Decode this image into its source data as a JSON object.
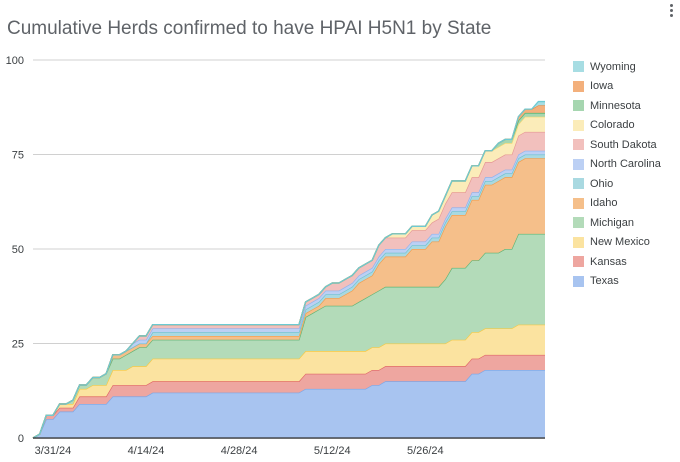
{
  "chart_data": {
    "type": "area",
    "stacked": true,
    "title": "Cumulative Herds confirmed to have HPAI H5N1 by State",
    "xlabel": "",
    "ylabel": "",
    "ylim": [
      0,
      100
    ],
    "y_ticks": [
      0,
      25,
      50,
      75,
      100
    ],
    "x_tick_labels": [
      "3/31/24",
      "4/14/24",
      "4/28/24",
      "5/12/24",
      "5/26/24"
    ],
    "x_tick_index": [
      3,
      17,
      31,
      45,
      59
    ],
    "grid": true,
    "legend_position": "right",
    "x": [
      "3/28/24",
      "3/29/24",
      "3/30/24",
      "3/31/24",
      "4/1/24",
      "4/2/24",
      "4/3/24",
      "4/4/24",
      "4/5/24",
      "4/6/24",
      "4/7/24",
      "4/8/24",
      "4/9/24",
      "4/10/24",
      "4/11/24",
      "4/12/24",
      "4/13/24",
      "4/14/24",
      "4/15/24",
      "4/16/24",
      "4/17/24",
      "4/18/24",
      "4/19/24",
      "4/20/24",
      "4/21/24",
      "4/22/24",
      "4/23/24",
      "4/24/24",
      "4/25/24",
      "4/26/24",
      "4/27/24",
      "4/28/24",
      "4/29/24",
      "4/30/24",
      "5/1/24",
      "5/2/24",
      "5/3/24",
      "5/4/24",
      "5/5/24",
      "5/6/24",
      "5/7/24",
      "5/8/24",
      "5/9/24",
      "5/10/24",
      "5/11/24",
      "5/12/24",
      "5/13/24",
      "5/14/24",
      "5/15/24",
      "5/16/24",
      "5/17/24",
      "5/18/24",
      "5/19/24",
      "5/20/24",
      "5/21/24",
      "5/22/24",
      "5/23/24",
      "5/24/24",
      "5/25/24",
      "5/26/24",
      "5/27/24",
      "5/28/24",
      "5/29/24",
      "5/30/24",
      "5/31/24",
      "6/1/24",
      "6/2/24",
      "6/3/24",
      "6/4/24",
      "6/5/24",
      "6/6/24",
      "6/7/24",
      "6/8/24",
      "6/9/24",
      "6/10/24",
      "6/11/24",
      "6/12/24",
      "6/13/24"
    ],
    "series": [
      {
        "name": "Texas",
        "color": "#a8c4f0",
        "line": "#7aa7e8",
        "values": [
          0,
          1,
          5,
          5,
          7,
          7,
          7,
          9,
          9,
          9,
          9,
          9,
          11,
          11,
          11,
          11,
          11,
          11,
          12,
          12,
          12,
          12,
          12,
          12,
          12,
          12,
          12,
          12,
          12,
          12,
          12,
          12,
          12,
          12,
          12,
          12,
          12,
          12,
          12,
          12,
          12,
          13,
          13,
          13,
          13,
          13,
          13,
          13,
          13,
          13,
          13,
          14,
          14,
          15,
          15,
          15,
          15,
          15,
          15,
          15,
          15,
          15,
          15,
          15,
          15,
          15,
          17,
          17,
          18,
          18,
          18,
          18,
          18,
          18,
          18,
          18,
          18,
          18
        ]
      },
      {
        "name": "Kansas",
        "color": "#eea6a0",
        "line": "#e06666",
        "values": [
          0,
          0,
          1,
          1,
          1,
          1,
          1,
          2,
          2,
          2,
          2,
          2,
          3,
          3,
          3,
          3,
          3,
          3,
          3,
          3,
          3,
          3,
          3,
          3,
          3,
          3,
          3,
          3,
          3,
          3,
          3,
          3,
          3,
          3,
          3,
          3,
          3,
          3,
          3,
          3,
          3,
          4,
          4,
          4,
          4,
          4,
          4,
          4,
          4,
          4,
          4,
          4,
          4,
          4,
          4,
          4,
          4,
          4,
          4,
          4,
          4,
          4,
          4,
          4,
          4,
          4,
          4,
          4,
          4,
          4,
          4,
          4,
          4,
          4,
          4,
          4,
          4,
          4
        ]
      },
      {
        "name": "New Mexico",
        "color": "#fbe3a0",
        "line": "#f6c944",
        "values": [
          0,
          0,
          0,
          0,
          1,
          1,
          1,
          2,
          2,
          3,
          3,
          3,
          4,
          4,
          4,
          5,
          5,
          5,
          6,
          6,
          6,
          6,
          6,
          6,
          6,
          6,
          6,
          6,
          6,
          6,
          6,
          6,
          6,
          6,
          6,
          6,
          6,
          6,
          6,
          6,
          6,
          6,
          6,
          6,
          6,
          6,
          6,
          6,
          6,
          6,
          6,
          6,
          6,
          6,
          6,
          6,
          6,
          6,
          6,
          6,
          6,
          6,
          6,
          7,
          7,
          7,
          7,
          7,
          7,
          7,
          7,
          7,
          7,
          8,
          8,
          8,
          8,
          8
        ]
      },
      {
        "name": "Michigan",
        "color": "#b3dbb9",
        "line": "#5fb474",
        "values": [
          0,
          0,
          0,
          0,
          0,
          0,
          1,
          1,
          1,
          2,
          2,
          3,
          3,
          3,
          4,
          4,
          5,
          5,
          5,
          5,
          5,
          5,
          5,
          5,
          5,
          5,
          5,
          5,
          5,
          5,
          5,
          5,
          5,
          5,
          5,
          5,
          5,
          5,
          5,
          5,
          5,
          9,
          10,
          11,
          12,
          12,
          12,
          12,
          12,
          13,
          14,
          14,
          15,
          15,
          15,
          15,
          15,
          15,
          15,
          15,
          15,
          15,
          17,
          19,
          19,
          19,
          19,
          19,
          20,
          20,
          20,
          21,
          21,
          24,
          24,
          24,
          24,
          24
        ]
      },
      {
        "name": "Idaho",
        "color": "#f5bf8a",
        "line": "#f29c4a",
        "values": [
          0,
          0,
          0,
          0,
          0,
          0,
          0,
          0,
          0,
          0,
          0,
          0,
          1,
          1,
          1,
          1,
          1,
          1,
          1,
          1,
          1,
          1,
          1,
          1,
          1,
          1,
          1,
          1,
          1,
          1,
          1,
          1,
          1,
          1,
          1,
          1,
          1,
          1,
          1,
          1,
          1,
          1,
          1,
          1,
          2,
          2,
          2,
          3,
          4,
          5,
          5,
          5,
          7,
          8,
          8,
          8,
          8,
          10,
          10,
          10,
          12,
          12,
          14,
          14,
          14,
          14,
          16,
          16,
          18,
          18,
          19,
          19,
          19,
          19,
          20,
          20,
          20,
          20
        ]
      },
      {
        "name": "Ohio",
        "color": "#a9d9e1",
        "line": "#6dc2cf",
        "values": [
          0,
          0,
          0,
          0,
          0,
          0,
          0,
          0,
          0,
          0,
          0,
          0,
          0,
          0,
          0,
          0,
          0,
          0,
          1,
          1,
          1,
          1,
          1,
          1,
          1,
          1,
          1,
          1,
          1,
          1,
          1,
          1,
          1,
          1,
          1,
          1,
          1,
          1,
          1,
          1,
          1,
          1,
          1,
          1,
          1,
          1,
          1,
          1,
          1,
          1,
          1,
          1,
          1,
          1,
          1,
          1,
          1,
          1,
          1,
          1,
          1,
          1,
          1,
          1,
          1,
          1,
          1,
          1,
          1,
          1,
          1,
          1,
          1,
          1,
          1,
          1,
          1,
          1
        ]
      },
      {
        "name": "North Carolina",
        "color": "#bcd0f4",
        "line": "#8fb2ee",
        "values": [
          0,
          0,
          0,
          0,
          0,
          0,
          0,
          0,
          0,
          0,
          0,
          0,
          0,
          0,
          0,
          1,
          1,
          1,
          1,
          1,
          1,
          1,
          1,
          1,
          1,
          1,
          1,
          1,
          1,
          1,
          1,
          1,
          1,
          1,
          1,
          1,
          1,
          1,
          1,
          1,
          1,
          1,
          1,
          1,
          1,
          1,
          1,
          1,
          1,
          1,
          1,
          1,
          1,
          1,
          1,
          1,
          1,
          1,
          1,
          1,
          1,
          1,
          1,
          1,
          1,
          1,
          1,
          1,
          1,
          1,
          1,
          1,
          1,
          1,
          1,
          1,
          1,
          1
        ]
      },
      {
        "name": "South Dakota",
        "color": "#f2c0bd",
        "line": "#e69894",
        "values": [
          0,
          0,
          0,
          0,
          0,
          0,
          0,
          0,
          0,
          0,
          0,
          0,
          0,
          0,
          0,
          0,
          1,
          1,
          1,
          1,
          1,
          1,
          1,
          1,
          1,
          1,
          1,
          1,
          1,
          1,
          1,
          1,
          1,
          1,
          1,
          1,
          1,
          1,
          1,
          1,
          1,
          1,
          1,
          1,
          1,
          2,
          2,
          2,
          2,
          2,
          2,
          2,
          3,
          3,
          3,
          3,
          3,
          3,
          3,
          3,
          3,
          4,
          4,
          4,
          4,
          4,
          4,
          4,
          4,
          4,
          4,
          4,
          4,
          5,
          5,
          5,
          5,
          5
        ]
      },
      {
        "name": "Colorado",
        "color": "#fbecb9",
        "line": "#f7d871",
        "values": [
          0,
          0,
          0,
          0,
          0,
          0,
          0,
          0,
          0,
          0,
          0,
          0,
          0,
          0,
          0,
          0,
          0,
          0,
          0,
          0,
          0,
          0,
          0,
          0,
          0,
          0,
          0,
          0,
          0,
          0,
          0,
          0,
          0,
          0,
          0,
          0,
          0,
          0,
          0,
          0,
          0,
          0,
          0,
          0,
          0,
          0,
          0,
          0,
          0,
          0,
          0,
          0,
          0,
          0,
          1,
          1,
          1,
          1,
          1,
          1,
          2,
          2,
          2,
          3,
          3,
          3,
          3,
          3,
          3,
          3,
          3,
          3,
          3,
          3,
          4,
          4,
          4,
          4
        ]
      },
      {
        "name": "Minnesota",
        "color": "#a6d6b0",
        "line": "#57b46b",
        "values": [
          0,
          0,
          0,
          0,
          0,
          0,
          0,
          0,
          0,
          0,
          0,
          0,
          0,
          0,
          0,
          0,
          0,
          0,
          0,
          0,
          0,
          0,
          0,
          0,
          0,
          0,
          0,
          0,
          0,
          0,
          0,
          0,
          0,
          0,
          0,
          0,
          0,
          0,
          0,
          0,
          0,
          0,
          0,
          0,
          0,
          0,
          0,
          0,
          0,
          0,
          0,
          0,
          0,
          0,
          0,
          0,
          0,
          0,
          0,
          0,
          0,
          0,
          0,
          0,
          0,
          0,
          0,
          0,
          0,
          0,
          1,
          1,
          1,
          1,
          1,
          1,
          1,
          1
        ]
      },
      {
        "name": "Iowa",
        "color": "#f3b07c",
        "line": "#f0883e",
        "values": [
          0,
          0,
          0,
          0,
          0,
          0,
          0,
          0,
          0,
          0,
          0,
          0,
          0,
          0,
          0,
          0,
          0,
          0,
          0,
          0,
          0,
          0,
          0,
          0,
          0,
          0,
          0,
          0,
          0,
          0,
          0,
          0,
          0,
          0,
          0,
          0,
          0,
          0,
          0,
          0,
          0,
          0,
          0,
          0,
          0,
          0,
          0,
          0,
          0,
          0,
          0,
          0,
          0,
          0,
          0,
          0,
          0,
          0,
          0,
          0,
          0,
          0,
          0,
          0,
          0,
          0,
          0,
          0,
          0,
          0,
          0,
          0,
          0,
          1,
          1,
          1,
          2,
          2
        ]
      },
      {
        "name": "Wyoming",
        "color": "#a7dde3",
        "line": "#6ccad3",
        "values": [
          0,
          0,
          0,
          0,
          0,
          0,
          0,
          0,
          0,
          0,
          0,
          0,
          0,
          0,
          0,
          0,
          0,
          0,
          0,
          0,
          0,
          0,
          0,
          0,
          0,
          0,
          0,
          0,
          0,
          0,
          0,
          0,
          0,
          0,
          0,
          0,
          0,
          0,
          0,
          0,
          0,
          0,
          0,
          0,
          0,
          0,
          0,
          0,
          0,
          0,
          0,
          0,
          0,
          0,
          0,
          0,
          0,
          0,
          0,
          0,
          0,
          0,
          0,
          0,
          0,
          0,
          0,
          0,
          0,
          0,
          0,
          0,
          0,
          0,
          0,
          0,
          1,
          1
        ]
      }
    ]
  },
  "legend_order": [
    "Wyoming",
    "Iowa",
    "Minnesota",
    "Colorado",
    "South Dakota",
    "North Carolina",
    "Ohio",
    "Idaho",
    "Michigan",
    "New Mexico",
    "Kansas",
    "Texas"
  ],
  "menu": {
    "icon": "more-vert-icon"
  }
}
